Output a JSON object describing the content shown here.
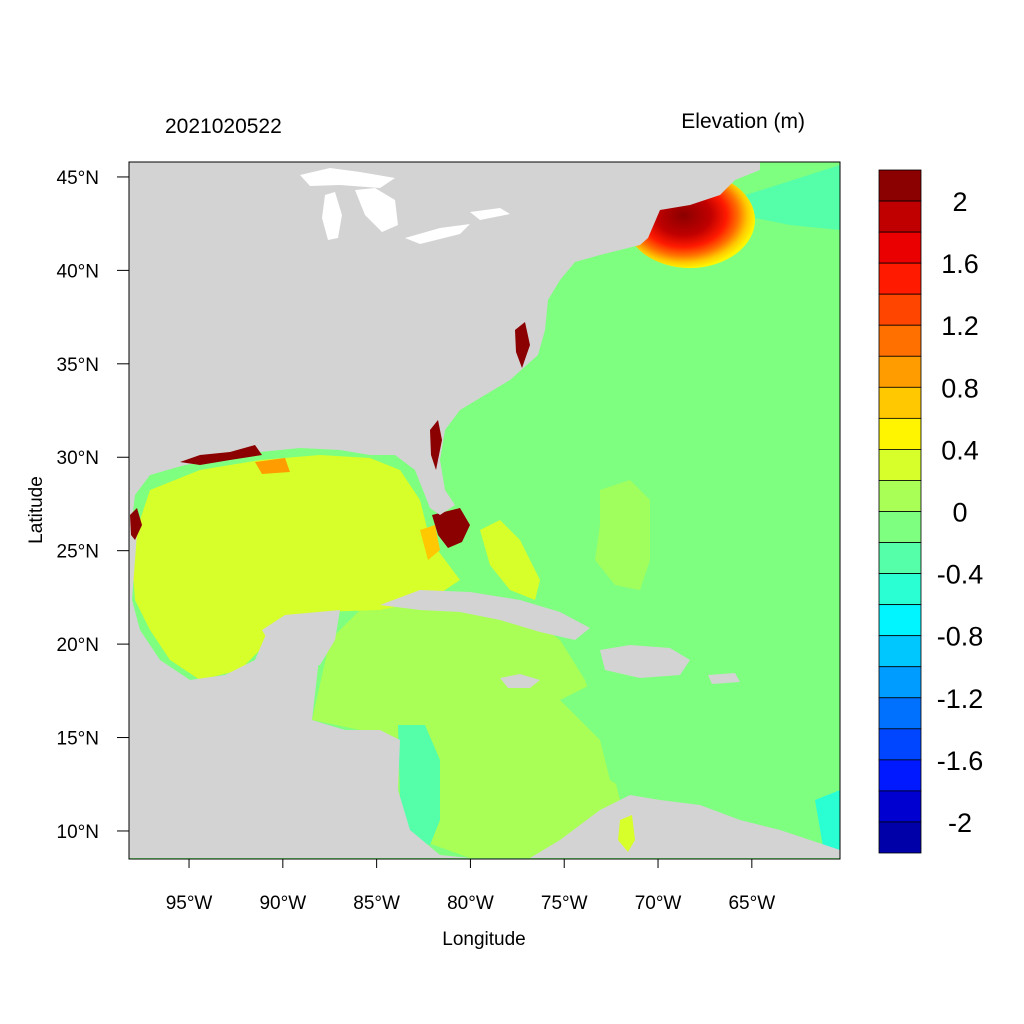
{
  "map": {
    "left_title": "2021020522",
    "right_title": "Elevation (m)",
    "xlabel": "Longitude",
    "ylabel": "Latitude",
    "lon_range": [
      -98.2,
      -60.3
    ],
    "lat_range": [
      8.5,
      45.8
    ],
    "lon_ticks": [
      {
        "value": -95,
        "label": "95°W"
      },
      {
        "value": -90,
        "label": "90°W"
      },
      {
        "value": -85,
        "label": "85°W"
      },
      {
        "value": -80,
        "label": "80°W"
      },
      {
        "value": -75,
        "label": "75°W"
      },
      {
        "value": -70,
        "label": "70°W"
      },
      {
        "value": -65,
        "label": "65°W"
      }
    ],
    "lat_ticks": [
      {
        "value": 45,
        "label": "45°N"
      },
      {
        "value": 40,
        "label": "40°N"
      },
      {
        "value": 35,
        "label": "35°N"
      },
      {
        "value": 30,
        "label": "30°N"
      },
      {
        "value": 25,
        "label": "25°N"
      },
      {
        "value": 20,
        "label": "20°N"
      },
      {
        "value": 15,
        "label": "15°N"
      },
      {
        "value": 10,
        "label": "10°N"
      }
    ],
    "land_color": "#d3d3d3",
    "lake_color": "#ffffff",
    "colors": {
      "ocean_default": "#7fff7f",
      "gulf": "#d7ff2a",
      "caribbean": "#a9ff55",
      "gulf_of_maine_surge": "#8b0000",
      "florida_surge": "#8b0000"
    }
  },
  "colorbar": {
    "levels": [
      {
        "color": "#8b0000"
      },
      {
        "color": "#c00000"
      },
      {
        "color": "#ea0000"
      },
      {
        "color": "#ff1a00"
      },
      {
        "color": "#ff4500"
      },
      {
        "color": "#ff7000"
      },
      {
        "color": "#ff9c00"
      },
      {
        "color": "#ffc800"
      },
      {
        "color": "#fff500"
      },
      {
        "color": "#d7ff2a"
      },
      {
        "color": "#a9ff55"
      },
      {
        "color": "#7fff7f"
      },
      {
        "color": "#55ffa9"
      },
      {
        "color": "#2affd4"
      },
      {
        "color": "#00f5ff"
      },
      {
        "color": "#00c8ff"
      },
      {
        "color": "#009cff"
      },
      {
        "color": "#0070ff"
      },
      {
        "color": "#0045ff"
      },
      {
        "color": "#0019ff"
      },
      {
        "color": "#0000d0"
      },
      {
        "color": "#0000a8"
      }
    ],
    "labels": [
      "2",
      "1.6",
      "1.2",
      "0.8",
      "0.4",
      "0",
      "-0.4",
      "-0.8",
      "-1.2",
      "-1.6",
      "-2"
    ]
  }
}
